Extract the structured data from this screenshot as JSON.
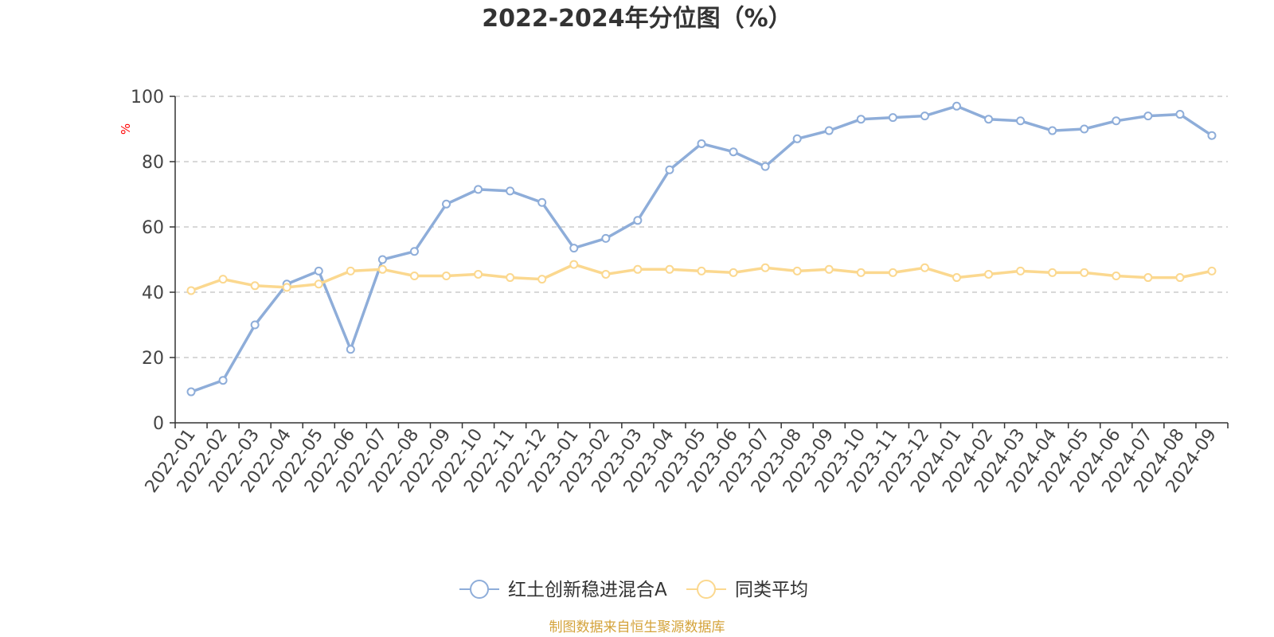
{
  "chart_data": {
    "type": "line",
    "title": "2022-2024年分位图（%）",
    "ylabel": "%",
    "xlabel": "",
    "ylim": [
      0,
      100
    ],
    "yticks": [
      "0",
      "20",
      "40",
      "60",
      "80",
      "100"
    ],
    "grid": true,
    "legend_position": "bottom",
    "categories": [
      "2022-01",
      "2022-02",
      "2022-03",
      "2022-04",
      "2022-05",
      "2022-06",
      "2022-07",
      "2022-08",
      "2022-09",
      "2022-10",
      "2022-11",
      "2022-12",
      "2023-01",
      "2023-02",
      "2023-03",
      "2023-04",
      "2023-05",
      "2023-06",
      "2023-07",
      "2023-08",
      "2023-09",
      "2023-10",
      "2023-11",
      "2023-12",
      "2024-01",
      "2024-02",
      "2024-03",
      "2024-04",
      "2024-05",
      "2024-06",
      "2024-07",
      "2024-08",
      "2024-09"
    ],
    "series": [
      {
        "name": "红土创新稳进混合A",
        "color": "#8eadd9",
        "values": [
          9.5,
          13,
          30,
          42.5,
          46.5,
          22.5,
          50,
          52.5,
          67,
          71.5,
          71,
          67.5,
          53.5,
          56.5,
          62,
          77.5,
          85.5,
          83,
          78.5,
          87,
          89.5,
          93,
          93.5,
          94,
          97,
          93,
          92.5,
          89.5,
          90,
          92.5,
          94,
          94.5,
          88
        ]
      },
      {
        "name": "同类平均",
        "color": "#fbd88f",
        "values": [
          40.5,
          44,
          42,
          41.5,
          42.5,
          46.5,
          47,
          45,
          45,
          45.5,
          44.5,
          44,
          48.5,
          45.5,
          47,
          47,
          46.5,
          46,
          47.5,
          46.5,
          47,
          46,
          46,
          47.5,
          44.5,
          45.5,
          46.5,
          46,
          46,
          45,
          44.5,
          44.5,
          46.5
        ]
      }
    ]
  },
  "legend": {
    "items": [
      {
        "label": "红土创新稳进混合A",
        "color": "#8eadd9"
      },
      {
        "label": "同类平均",
        "color": "#fbd88f"
      }
    ]
  },
  "source": {
    "text": "制图数据来自恒生聚源数据库",
    "color": "#d4a33b"
  }
}
